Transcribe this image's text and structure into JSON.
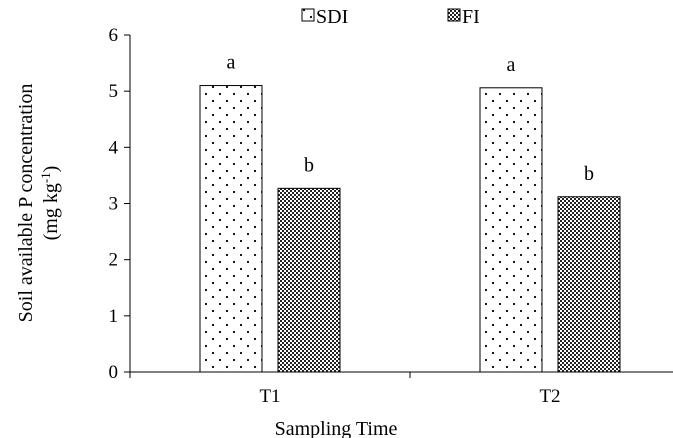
{
  "chart_data": {
    "type": "bar",
    "categories": [
      "T1",
      "T2"
    ],
    "series": [
      {
        "name": "SDI",
        "values": [
          5.1,
          5.06
        ],
        "labels": [
          "a",
          "a"
        ],
        "pattern": "dotted",
        "color": "#ffffff"
      },
      {
        "name": "FI",
        "values": [
          3.27,
          3.12
        ],
        "labels": [
          "b",
          "b"
        ],
        "pattern": "checkered",
        "color": "#6e6e6e"
      }
    ],
    "xlabel": "Sampling Time",
    "ylabel": {
      "line1": "Soil available P concentration",
      "line2_pre": "(mg kg",
      "line2_sup": "-1",
      "line2_post": ")"
    },
    "ylim": [
      0,
      6
    ],
    "yticks": [
      "0",
      "1",
      "2",
      "3",
      "4",
      "5",
      "6"
    ],
    "grid": false,
    "legend_position": "top-center"
  }
}
